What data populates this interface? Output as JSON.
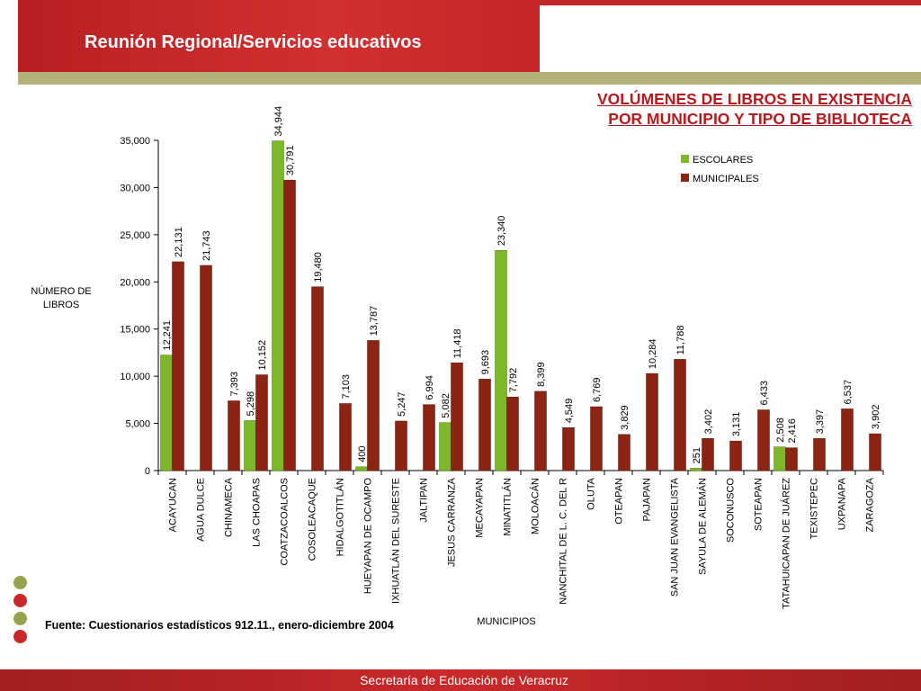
{
  "header": {
    "title": "Reunión Regional/Servicios educativos"
  },
  "chart_title_lines": [
    "VOLÚMENES DE LIBROS EN EXISTENCIA",
    "POR MUNICIPIO Y TIPO DE BIBLIOTECA"
  ],
  "source": "Fuente: Cuestionarios estadísticos 912.11., enero-diciembre 2004",
  "footer": {
    "text": "Secretaría de Educación de Veracruz"
  },
  "colors": {
    "accent_red": "#b81f22",
    "olive": "#b4b27a",
    "dot_green": "#9aa24e",
    "dot_red": "#c9282b",
    "escolares": "#7db82a",
    "municipales": "#8b2413"
  },
  "chart_data": {
    "type": "bar",
    "ylabel_lines": [
      "NÚMERO DE",
      "LIBROS"
    ],
    "xlabel": "MUNICIPIOS",
    "ylim": [
      0,
      35000
    ],
    "yticks": [
      "0",
      "5,000",
      "10,000",
      "15,000",
      "20,000",
      "25,000",
      "30,000",
      "35,000"
    ],
    "ytick_values": [
      0,
      5000,
      10000,
      15000,
      20000,
      25000,
      30000,
      35000
    ],
    "legend_position": "top-right",
    "categories": [
      "ACAYUCAN",
      "AGUA DULCE",
      "CHINAMECA",
      "LAS CHOAPAS",
      "COATZACOALCOS",
      "COSOLEACAQUE",
      "HIDALGOTITLÁN",
      "HUEYAPAN DE OCAMPO",
      "IXHUATLÁN DEL SURESTE",
      "JALTIPAN",
      "JESUS CARRANZA",
      "MECAYAPAN",
      "MINATITLÁN",
      "MOLOACÁN",
      "NANCHITAL DE L. C. DEL R",
      "OLUTA",
      "OTEAPAN",
      "PAJAPAN",
      "SAN JUAN EVANGELISTA",
      "SAYULA DE ALEMÁN",
      "SOCONUSCO",
      "SOTEAPAN",
      "TATAHUICAPAN DE JUÁREZ",
      "TEXISTEPEC",
      "UXPANAPA",
      "ZARAGOZA"
    ],
    "series": [
      {
        "name": "ESCOLARES",
        "color": "#7db82a",
        "values": [
          12241,
          null,
          null,
          5298,
          34944,
          null,
          null,
          400,
          null,
          null,
          5082,
          null,
          23340,
          null,
          null,
          null,
          null,
          null,
          null,
          251,
          null,
          null,
          2508,
          null,
          null,
          null
        ],
        "labels": [
          "12,241",
          "",
          "",
          "5,298",
          "34,944",
          "",
          "",
          "400",
          "",
          "",
          "5,082",
          "",
          "23,340",
          "",
          "",
          "",
          "",
          "",
          "",
          "251",
          "",
          "",
          "2,508",
          "",
          "",
          ""
        ]
      },
      {
        "name": "MUNICIPALES",
        "color": "#8b2413",
        "values": [
          22131,
          21743,
          7393,
          10152,
          30791,
          19480,
          7103,
          13787,
          5247,
          6994,
          11418,
          9693,
          7792,
          8399,
          4549,
          6769,
          3829,
          10284,
          11788,
          3402,
          3131,
          6433,
          2416,
          3397,
          6537,
          3902
        ],
        "labels": [
          "22,131",
          "21,743",
          "7,393",
          "10,152",
          "30,791",
          "19,480",
          "7,103",
          "13,787",
          "5,247",
          "6,994",
          "11,418",
          "9,693",
          "7,792",
          "8,399",
          "4,549",
          "6,769",
          "3,829",
          "10,284",
          "11,788",
          "3,402",
          "3,131",
          "6,433",
          "2,416",
          "3,397",
          "6,537",
          "3,902"
        ]
      }
    ]
  }
}
